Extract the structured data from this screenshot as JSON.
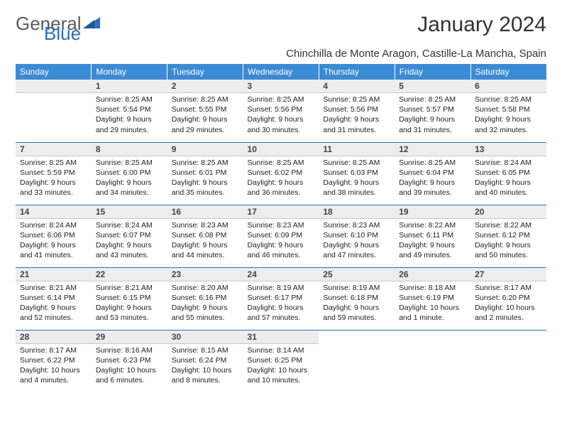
{
  "brand": {
    "part1": "General",
    "part2": "Blue"
  },
  "title": "January 2024",
  "location": "Chinchilla de Monte Aragon, Castille-La Mancha, Spain",
  "colors": {
    "header_bg": "#3b8bd4",
    "header_text": "#ffffff",
    "border": "#2b6fb5",
    "daynum_bg": "#ededed",
    "logo_gray": "#5a5a5a",
    "logo_blue": "#2b6fb5"
  },
  "weekdays": [
    "Sunday",
    "Monday",
    "Tuesday",
    "Wednesday",
    "Thursday",
    "Friday",
    "Saturday"
  ],
  "weeks": [
    [
      {
        "num": "",
        "lines": []
      },
      {
        "num": "1",
        "lines": [
          "Sunrise: 8:25 AM",
          "Sunset: 5:54 PM",
          "Daylight: 9 hours",
          "and 29 minutes."
        ]
      },
      {
        "num": "2",
        "lines": [
          "Sunrise: 8:25 AM",
          "Sunset: 5:55 PM",
          "Daylight: 9 hours",
          "and 29 minutes."
        ]
      },
      {
        "num": "3",
        "lines": [
          "Sunrise: 8:25 AM",
          "Sunset: 5:56 PM",
          "Daylight: 9 hours",
          "and 30 minutes."
        ]
      },
      {
        "num": "4",
        "lines": [
          "Sunrise: 8:25 AM",
          "Sunset: 5:56 PM",
          "Daylight: 9 hours",
          "and 31 minutes."
        ]
      },
      {
        "num": "5",
        "lines": [
          "Sunrise: 8:25 AM",
          "Sunset: 5:57 PM",
          "Daylight: 9 hours",
          "and 31 minutes."
        ]
      },
      {
        "num": "6",
        "lines": [
          "Sunrise: 8:25 AM",
          "Sunset: 5:58 PM",
          "Daylight: 9 hours",
          "and 32 minutes."
        ]
      }
    ],
    [
      {
        "num": "7",
        "lines": [
          "Sunrise: 8:25 AM",
          "Sunset: 5:59 PM",
          "Daylight: 9 hours",
          "and 33 minutes."
        ]
      },
      {
        "num": "8",
        "lines": [
          "Sunrise: 8:25 AM",
          "Sunset: 6:00 PM",
          "Daylight: 9 hours",
          "and 34 minutes."
        ]
      },
      {
        "num": "9",
        "lines": [
          "Sunrise: 8:25 AM",
          "Sunset: 6:01 PM",
          "Daylight: 9 hours",
          "and 35 minutes."
        ]
      },
      {
        "num": "10",
        "lines": [
          "Sunrise: 8:25 AM",
          "Sunset: 6:02 PM",
          "Daylight: 9 hours",
          "and 36 minutes."
        ]
      },
      {
        "num": "11",
        "lines": [
          "Sunrise: 8:25 AM",
          "Sunset: 6:03 PM",
          "Daylight: 9 hours",
          "and 38 minutes."
        ]
      },
      {
        "num": "12",
        "lines": [
          "Sunrise: 8:25 AM",
          "Sunset: 6:04 PM",
          "Daylight: 9 hours",
          "and 39 minutes."
        ]
      },
      {
        "num": "13",
        "lines": [
          "Sunrise: 8:24 AM",
          "Sunset: 6:05 PM",
          "Daylight: 9 hours",
          "and 40 minutes."
        ]
      }
    ],
    [
      {
        "num": "14",
        "lines": [
          "Sunrise: 8:24 AM",
          "Sunset: 6:06 PM",
          "Daylight: 9 hours",
          "and 41 minutes."
        ]
      },
      {
        "num": "15",
        "lines": [
          "Sunrise: 8:24 AM",
          "Sunset: 6:07 PM",
          "Daylight: 9 hours",
          "and 43 minutes."
        ]
      },
      {
        "num": "16",
        "lines": [
          "Sunrise: 8:23 AM",
          "Sunset: 6:08 PM",
          "Daylight: 9 hours",
          "and 44 minutes."
        ]
      },
      {
        "num": "17",
        "lines": [
          "Sunrise: 8:23 AM",
          "Sunset: 6:09 PM",
          "Daylight: 9 hours",
          "and 46 minutes."
        ]
      },
      {
        "num": "18",
        "lines": [
          "Sunrise: 8:23 AM",
          "Sunset: 6:10 PM",
          "Daylight: 9 hours",
          "and 47 minutes."
        ]
      },
      {
        "num": "19",
        "lines": [
          "Sunrise: 8:22 AM",
          "Sunset: 6:11 PM",
          "Daylight: 9 hours",
          "and 49 minutes."
        ]
      },
      {
        "num": "20",
        "lines": [
          "Sunrise: 8:22 AM",
          "Sunset: 6:12 PM",
          "Daylight: 9 hours",
          "and 50 minutes."
        ]
      }
    ],
    [
      {
        "num": "21",
        "lines": [
          "Sunrise: 8:21 AM",
          "Sunset: 6:14 PM",
          "Daylight: 9 hours",
          "and 52 minutes."
        ]
      },
      {
        "num": "22",
        "lines": [
          "Sunrise: 8:21 AM",
          "Sunset: 6:15 PM",
          "Daylight: 9 hours",
          "and 53 minutes."
        ]
      },
      {
        "num": "23",
        "lines": [
          "Sunrise: 8:20 AM",
          "Sunset: 6:16 PM",
          "Daylight: 9 hours",
          "and 55 minutes."
        ]
      },
      {
        "num": "24",
        "lines": [
          "Sunrise: 8:19 AM",
          "Sunset: 6:17 PM",
          "Daylight: 9 hours",
          "and 57 minutes."
        ]
      },
      {
        "num": "25",
        "lines": [
          "Sunrise: 8:19 AM",
          "Sunset: 6:18 PM",
          "Daylight: 9 hours",
          "and 59 minutes."
        ]
      },
      {
        "num": "26",
        "lines": [
          "Sunrise: 8:18 AM",
          "Sunset: 6:19 PM",
          "Daylight: 10 hours",
          "and 1 minute."
        ]
      },
      {
        "num": "27",
        "lines": [
          "Sunrise: 8:17 AM",
          "Sunset: 6:20 PM",
          "Daylight: 10 hours",
          "and 2 minutes."
        ]
      }
    ],
    [
      {
        "num": "28",
        "lines": [
          "Sunrise: 8:17 AM",
          "Sunset: 6:22 PM",
          "Daylight: 10 hours",
          "and 4 minutes."
        ]
      },
      {
        "num": "29",
        "lines": [
          "Sunrise: 8:16 AM",
          "Sunset: 6:23 PM",
          "Daylight: 10 hours",
          "and 6 minutes."
        ]
      },
      {
        "num": "30",
        "lines": [
          "Sunrise: 8:15 AM",
          "Sunset: 6:24 PM",
          "Daylight: 10 hours",
          "and 8 minutes."
        ]
      },
      {
        "num": "31",
        "lines": [
          "Sunrise: 8:14 AM",
          "Sunset: 6:25 PM",
          "Daylight: 10 hours",
          "and 10 minutes."
        ]
      },
      {
        "num": "",
        "lines": []
      },
      {
        "num": "",
        "lines": []
      },
      {
        "num": "",
        "lines": []
      }
    ]
  ]
}
